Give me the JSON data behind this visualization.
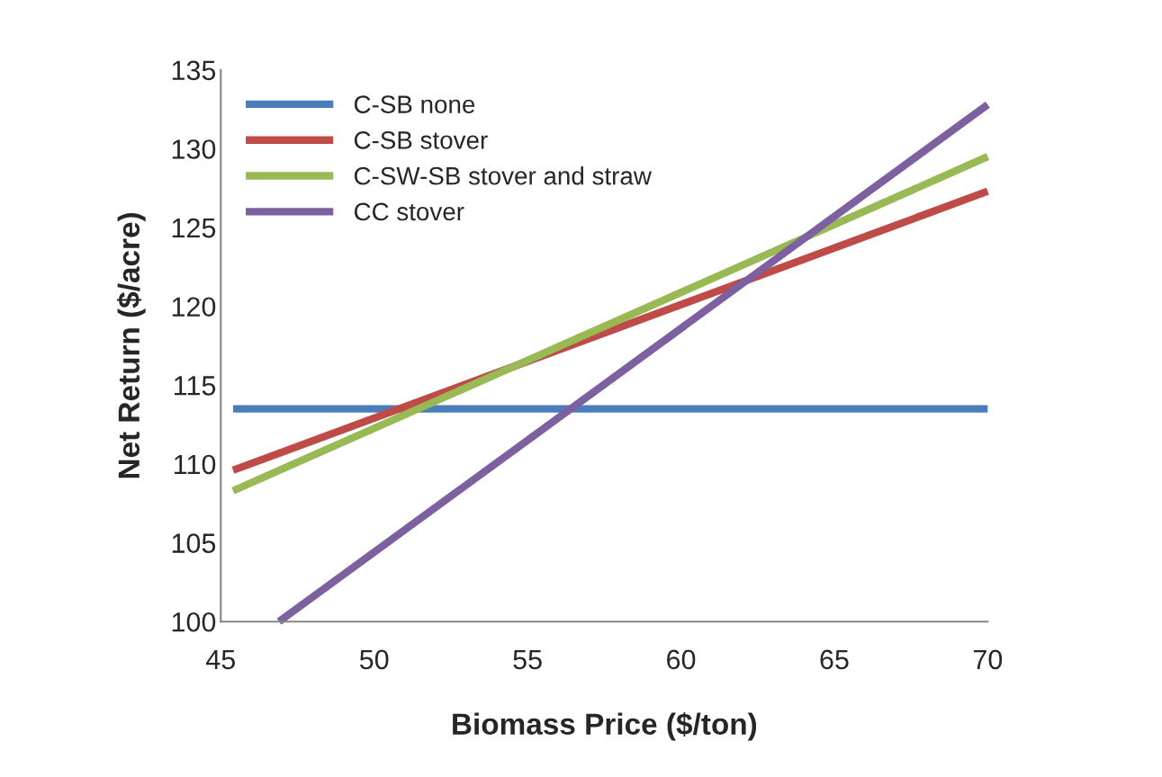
{
  "chart_data": {
    "type": "line",
    "xlabel": "Biomass Price ($/ton)",
    "ylabel": "Net Return ($/acre)",
    "xlim": [
      45,
      70
    ],
    "xticks": [
      45,
      50,
      55,
      60,
      65,
      70
    ],
    "ylim": [
      100,
      135
    ],
    "yticks": [
      100,
      105,
      110,
      115,
      120,
      125,
      130,
      135
    ],
    "grid": false,
    "legend": "top left",
    "marker": "none",
    "line_style": "solid",
    "series": [
      {
        "name": "C-SB none",
        "color": "#4a7ebb",
        "x": [
          45.4,
          70
        ],
        "values": [
          113.5,
          113.5
        ]
      },
      {
        "name": "C-SB stover",
        "color": "#be4b48",
        "x": [
          45.4,
          70
        ],
        "values": [
          109.6,
          127.3
        ]
      },
      {
        "name": "C-SW-SB stover and straw",
        "color": "#98b954",
        "x": [
          45.4,
          70
        ],
        "values": [
          108.3,
          129.5
        ]
      },
      {
        "name": "CC stover",
        "color": "#7d60a0",
        "x": [
          46.9,
          70
        ],
        "values": [
          100,
          132.8
        ]
      }
    ]
  }
}
